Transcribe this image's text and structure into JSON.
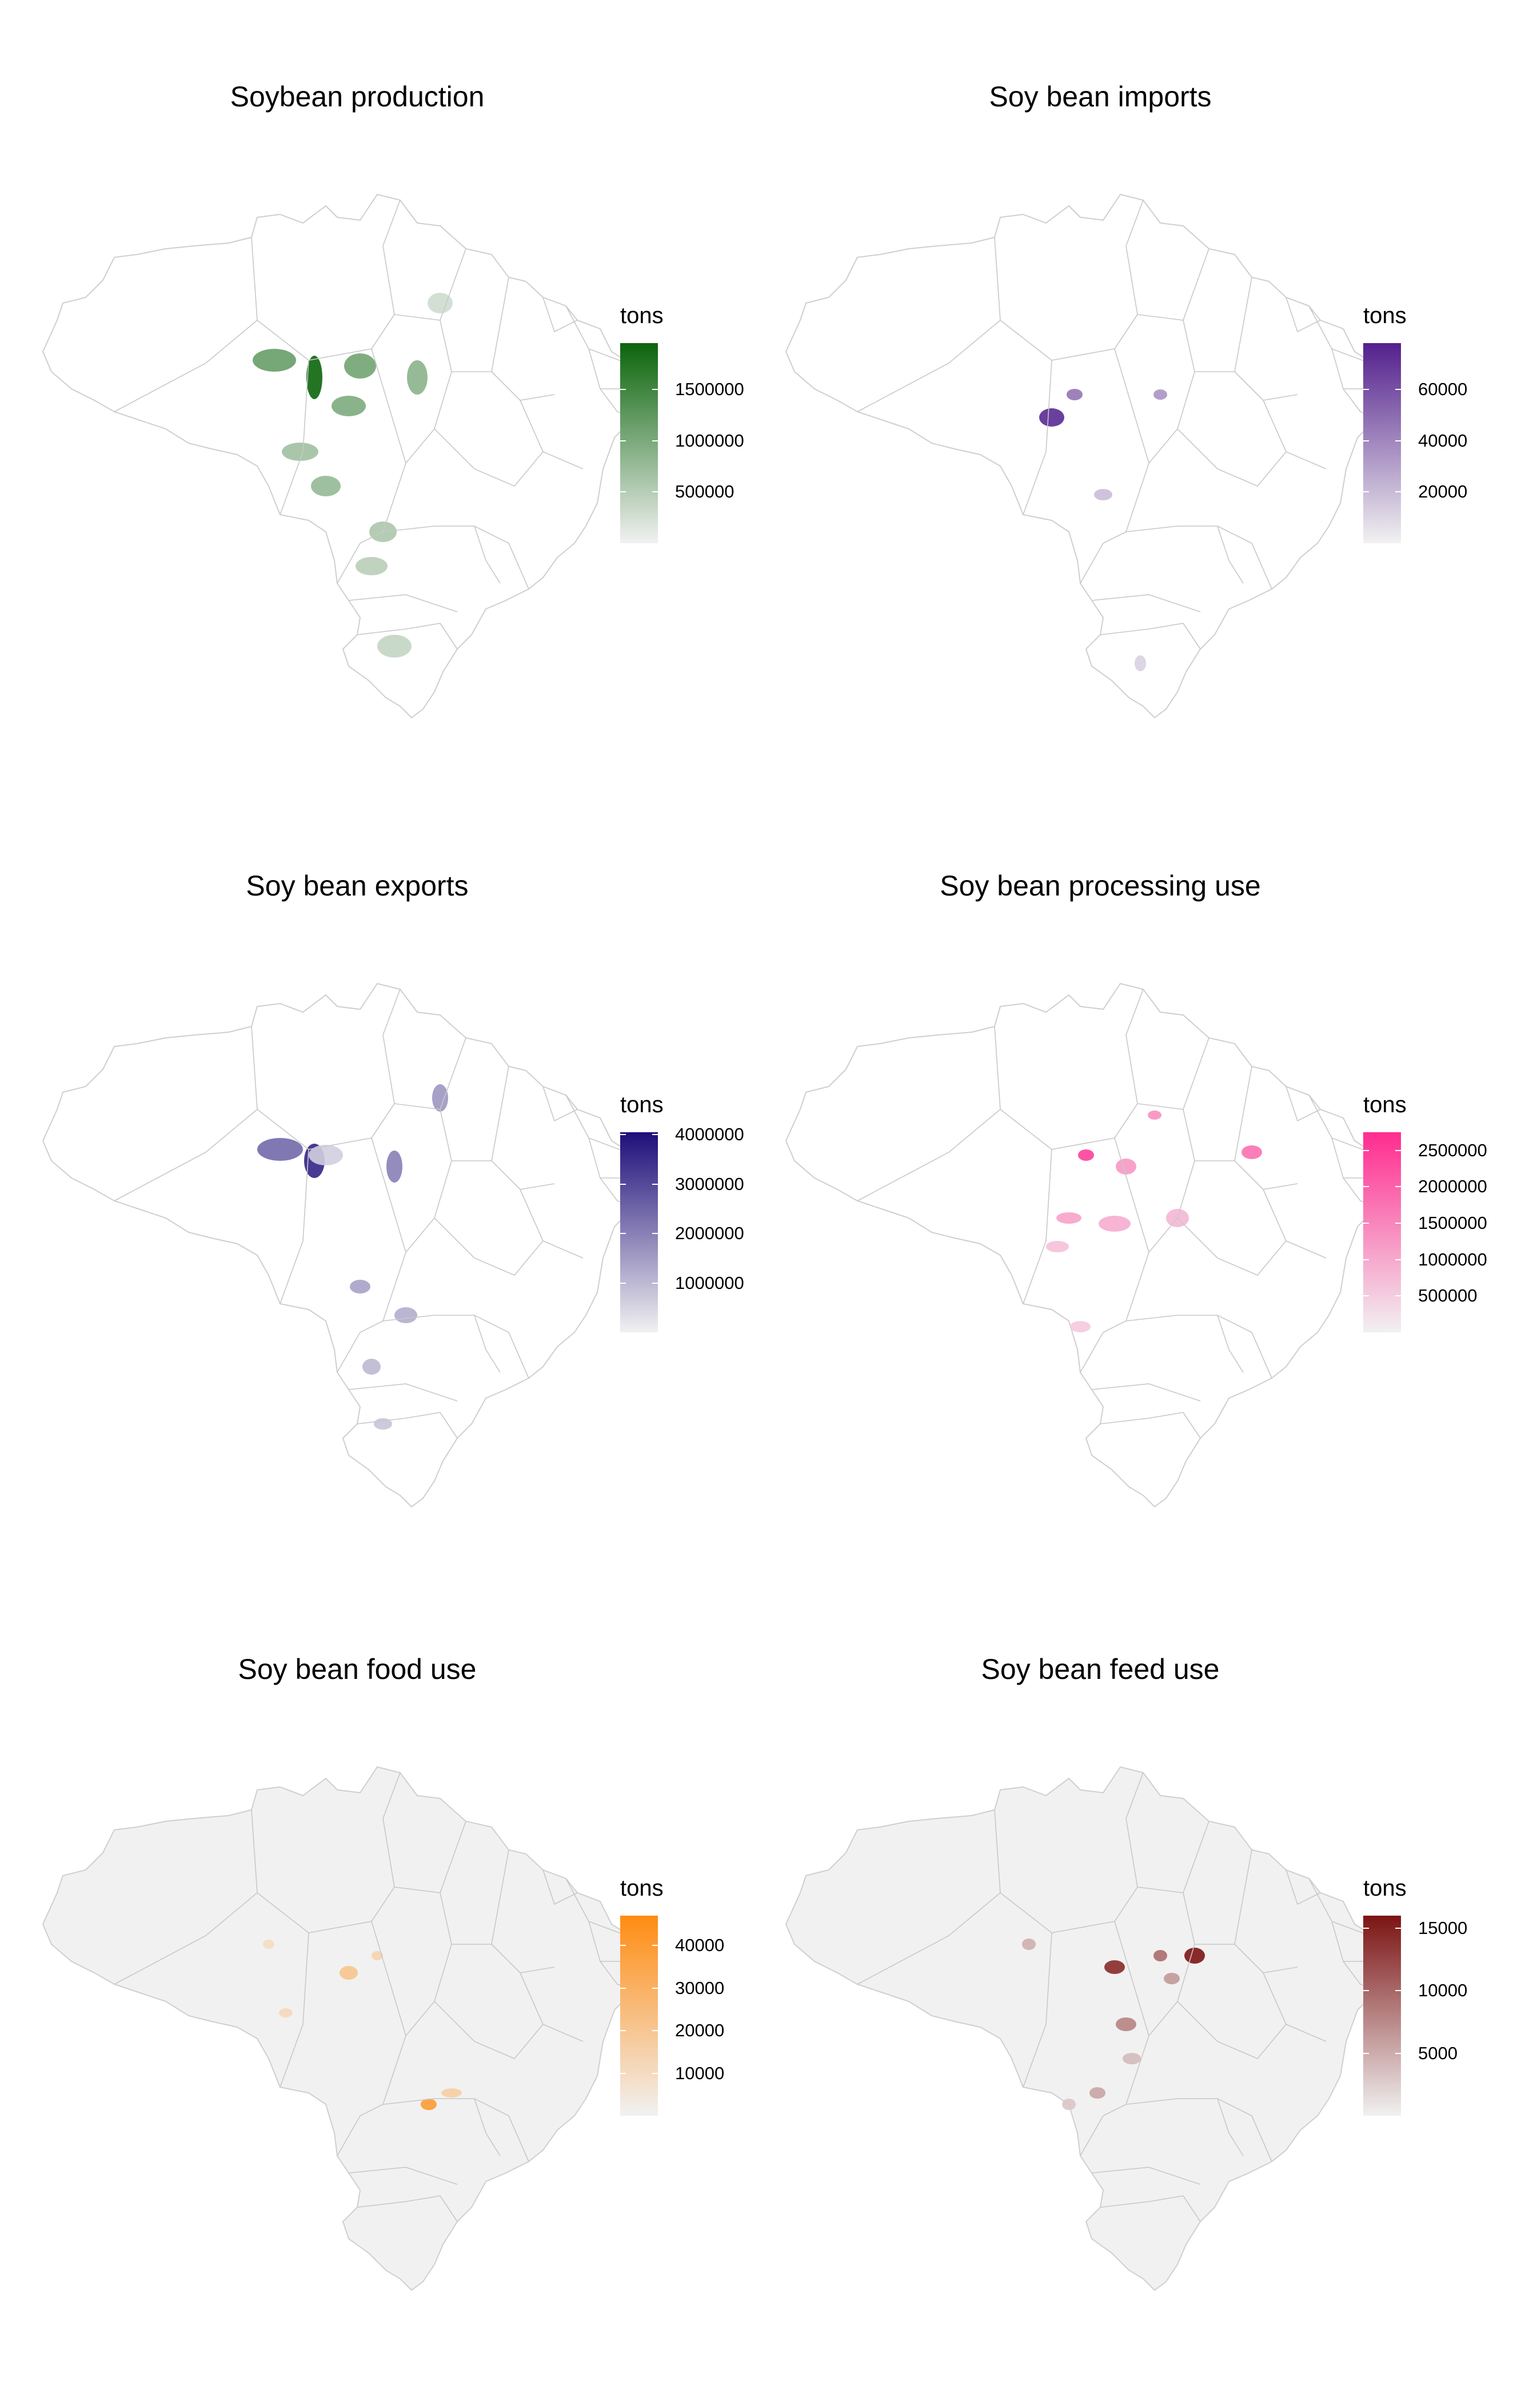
{
  "map": {
    "panels": [
      {
        "id": "production",
        "title": "Soybean production",
        "legend_title": "tons",
        "color_low": "#f1f1f1",
        "color_high": "#0b650b",
        "base_fill": "#ffffff",
        "scale_max": 1950000,
        "ticks": [
          "1500000",
          "1000000",
          "500000"
        ],
        "tick_values": [
          1500000,
          1000000,
          500000
        ],
        "hotspot_intensity": [
          1.0,
          0.6,
          0.55,
          0.45,
          0.5,
          0.4,
          0.35,
          0.3,
          0.25,
          0.2,
          0.15
        ]
      },
      {
        "id": "imports",
        "title": "Soy bean imports",
        "legend_title": "tons",
        "color_low": "#f1f1f1",
        "color_high": "#53208d",
        "base_fill": "#ffffff",
        "scale_max": 78000,
        "ticks": [
          "60000",
          "40000",
          "20000"
        ],
        "tick_values": [
          60000,
          40000,
          20000
        ],
        "hotspot_intensity": [
          0.95,
          0.6,
          0.45,
          0.25,
          0.15
        ]
      },
      {
        "id": "exports",
        "title": "Soy bean exports",
        "legend_title": "tons",
        "color_low": "#f1f1f1",
        "color_high": "#1e0e7a",
        "base_fill": "#ffffff",
        "scale_max": 4050000,
        "ticks": [
          "4000000",
          "3000000",
          "2000000",
          "1000000"
        ],
        "tick_values": [
          4000000,
          3000000,
          2000000,
          1000000
        ],
        "hotspot_intensity": [
          0.9,
          0.6,
          0.5,
          0.4,
          0.35,
          0.3,
          0.25,
          0.2,
          0.15
        ]
      },
      {
        "id": "processing",
        "title": "Soy bean processing use",
        "legend_title": "tons",
        "color_low": "#f1f1f1",
        "color_high": "#ff2c8f",
        "base_fill": "#ffffff",
        "scale_max": 2750000,
        "ticks": [
          "2500000",
          "2000000",
          "1500000",
          "1000000",
          "500000"
        ],
        "tick_values": [
          2500000,
          2000000,
          1500000,
          1000000,
          500000
        ],
        "hotspot_intensity": [
          0.9,
          0.65,
          0.5,
          0.45,
          0.4,
          0.35,
          0.3,
          0.25,
          0.2
        ]
      },
      {
        "id": "food",
        "title": "Soy bean food use",
        "legend_title": "tons",
        "color_low": "#f1f1f1",
        "color_high": "#ff8c12",
        "base_fill": "#f1f1f1",
        "scale_max": 47000,
        "ticks": [
          "40000",
          "30000",
          "20000",
          "10000"
        ],
        "tick_values": [
          40000,
          30000,
          20000,
          10000
        ],
        "hotspot_intensity": [
          0.85,
          0.45,
          0.35,
          0.3,
          0.25,
          0.2
        ]
      },
      {
        "id": "feed",
        "title": "Soy bean feed use",
        "legend_title": "tons",
        "color_low": "#f1f1f1",
        "color_high": "#7c1414",
        "base_fill": "#f1f1f1",
        "scale_max": 16000,
        "ticks": [
          "15000",
          "10000",
          "5000"
        ],
        "tick_values": [
          15000,
          10000,
          5000
        ],
        "hotspot_intensity": [
          1.0,
          0.9,
          0.6,
          0.5,
          0.4,
          0.35,
          0.3,
          0.25,
          0.2
        ]
      }
    ]
  }
}
